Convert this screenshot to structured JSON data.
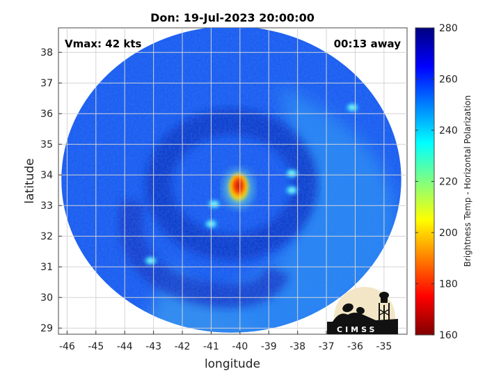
{
  "title": "Don: 19-Jul-2023 20:00:00",
  "annotations": {
    "vmax": "Vmax: 42 kts",
    "time_away": "00:13 away"
  },
  "axes": {
    "xlabel": "longitude",
    "ylabel": "latitude",
    "xlim": [
      -46.3,
      -34.2
    ],
    "ylim": [
      28.8,
      38.8
    ],
    "xticks": [
      -46,
      -45,
      -44,
      -43,
      -42,
      -41,
      -40,
      -39,
      -38,
      -37,
      -36,
      -35
    ],
    "yticks": [
      29,
      30,
      31,
      32,
      33,
      34,
      35,
      36,
      37,
      38
    ],
    "grid": true
  },
  "colorbar": {
    "label": "Brightness Temp - Horizontal Polarization",
    "min": 160,
    "max": 280,
    "ticks": [
      160,
      180,
      200,
      220,
      240,
      260,
      280
    ],
    "colormap": "jet"
  },
  "logo": {
    "text": "CIMSS"
  },
  "swath": {
    "center_lon": -40.3,
    "center_lat": 33.85,
    "radius_deg_lon": 5.9,
    "radius_deg_lat": 5.0,
    "background_temp": 256
  },
  "map_features": {
    "eye_center": [
      -40.1,
      33.6
    ],
    "eye_core_temp": 190,
    "eye_rim_temp": 215,
    "dark_ring_temp": 266,
    "bright_spots": [
      {
        "lon": -43.1,
        "lat": 31.2,
        "temp": 232
      },
      {
        "lon": -40.9,
        "lat": 33.05,
        "temp": 232
      },
      {
        "lon": -41.0,
        "lat": 32.4,
        "temp": 234
      },
      {
        "lon": -38.2,
        "lat": 34.05,
        "temp": 238
      },
      {
        "lon": -38.2,
        "lat": 33.5,
        "temp": 240
      },
      {
        "lon": -36.1,
        "lat": 36.2,
        "temp": 240
      }
    ]
  }
}
